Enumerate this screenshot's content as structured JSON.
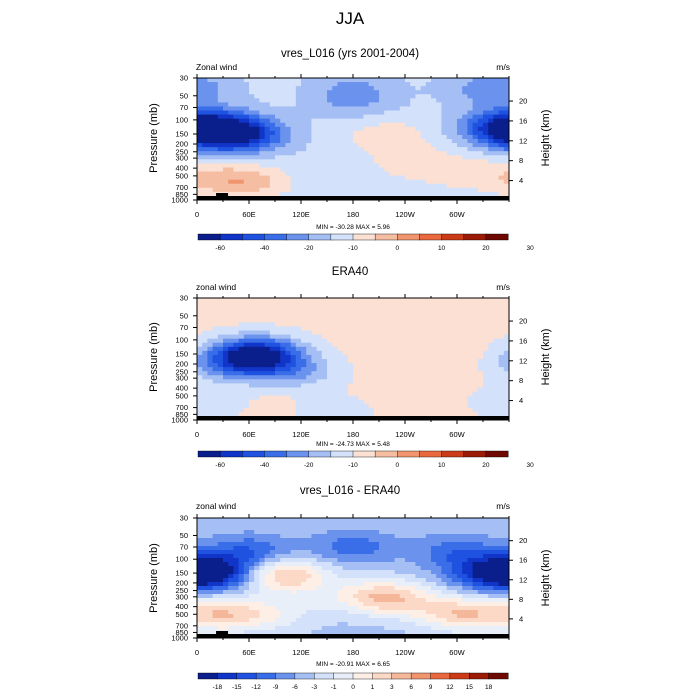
{
  "figure": {
    "title": "JJA"
  },
  "chart_data": [
    {
      "type": "heatmap",
      "title": "vres_L016 (yrs 2001-2004)",
      "left_label": "Zonal wind",
      "right_label": "m/s",
      "ylabel": "Pressure (mb)",
      "ylabel_right": "Height (km)",
      "x_ticks": [
        "0",
        "60E",
        "120E",
        "180",
        "120W",
        "60W"
      ],
      "x_tick_values": [
        0,
        60,
        120,
        180,
        240,
        300
      ],
      "xlim": [
        0,
        360
      ],
      "y_ticks": [
        "30",
        "50",
        "70",
        "100",
        "150",
        "200",
        "250",
        "300",
        "400",
        "500",
        "700",
        "850",
        "1000"
      ],
      "y_tick_values": [
        30,
        50,
        70,
        100,
        150,
        200,
        250,
        300,
        400,
        500,
        700,
        850,
        1000
      ],
      "ylim": [
        1000,
        30
      ],
      "height_ticks": [
        "4",
        "8",
        "12",
        "16",
        "20"
      ],
      "height_tick_values": [
        4,
        8,
        12,
        16,
        20
      ],
      "stats": "MIN = -30.28  MAX =  5.96",
      "min": -30.28,
      "max": 5.96,
      "colorbar_labels": [
        "-60",
        "-40",
        "-20",
        "-10",
        "0",
        "10",
        "20",
        "30"
      ],
      "colorbar_colors": [
        "#0a1e8c",
        "#1035c8",
        "#1f52e0",
        "#3a6ee8",
        "#6b93ee",
        "#a5bff5",
        "#d3e2fa",
        "#fbe0d3",
        "#f5bda2",
        "#f0956e",
        "#e9683e",
        "#cc3b17",
        "#9b1b05",
        "#6e0800"
      ],
      "fields": [
        {
          "lon": 0,
          "p": 110,
          "value": -14
        },
        {
          "lon": 30,
          "p": 140,
          "value": -26
        },
        {
          "lon": 60,
          "p": 160,
          "value": -14
        },
        {
          "lon": 0,
          "p": 40,
          "value": -8
        },
        {
          "lon": 180,
          "p": 40,
          "value": -8
        },
        {
          "lon": 330,
          "p": 40,
          "value": -8
        },
        {
          "lon": 180,
          "p": 60,
          "value": -8
        },
        {
          "lon": 350,
          "p": 140,
          "value": -13
        },
        {
          "lon": 220,
          "p": 160,
          "value": 3
        },
        {
          "lon": 60,
          "p": 600,
          "value": 5
        },
        {
          "lon": 20,
          "p": 550,
          "value": 3
        },
        {
          "lon": 250,
          "p": 350,
          "value": 2
        },
        {
          "lon": 310,
          "p": 450,
          "value": 2
        }
      ],
      "background_value": -3
    },
    {
      "type": "heatmap",
      "title": "ERA40",
      "left_label": "zonal wind",
      "right_label": "m/s",
      "ylabel": "Pressure (mb)",
      "ylabel_right": "Height (km)",
      "x_ticks": [
        "0",
        "60E",
        "120E",
        "180",
        "120W",
        "60W"
      ],
      "x_tick_values": [
        0,
        60,
        120,
        180,
        240,
        300
      ],
      "xlim": [
        0,
        360
      ],
      "y_ticks": [
        "30",
        "50",
        "70",
        "100",
        "150",
        "200",
        "250",
        "300",
        "400",
        "500",
        "700",
        "850",
        "1000"
      ],
      "y_tick_values": [
        30,
        50,
        70,
        100,
        150,
        200,
        250,
        300,
        400,
        500,
        700,
        850,
        1000
      ],
      "ylim": [
        1000,
        30
      ],
      "height_ticks": [
        "4",
        "8",
        "12",
        "16",
        "20"
      ],
      "height_tick_values": [
        4,
        8,
        12,
        16,
        20
      ],
      "stats": "MIN = -24.73  MAX =  5.48",
      "min": -24.73,
      "max": 5.48,
      "colorbar_labels": [
        "-60",
        "-40",
        "-20",
        "-10",
        "0",
        "10",
        "20",
        "30"
      ],
      "colorbar_colors": [
        "#0a1e8c",
        "#1035c8",
        "#1f52e0",
        "#3a6ee8",
        "#6b93ee",
        "#a5bff5",
        "#d3e2fa",
        "#fbe0d3",
        "#f5bda2",
        "#f0956e",
        "#e9683e",
        "#cc3b17",
        "#9b1b05",
        "#6e0800"
      ],
      "fields": [
        {
          "lon": 70,
          "p": 150,
          "value": -22
        },
        {
          "lon": 40,
          "p": 200,
          "value": -9
        },
        {
          "lon": 110,
          "p": 250,
          "value": -7
        },
        {
          "lon": 10,
          "p": 600,
          "value": -3
        },
        {
          "lon": 90,
          "p": 700,
          "value": 2
        },
        {
          "lon": 260,
          "p": 150,
          "value": 3
        },
        {
          "lon": 200,
          "p": 40,
          "value": 2
        },
        {
          "lon": 200,
          "p": 500,
          "value": 1
        },
        {
          "lon": 330,
          "p": 500,
          "value": 1
        },
        {
          "lon": 150,
          "p": 800,
          "value": -2
        }
      ],
      "background_value": 1
    },
    {
      "type": "heatmap",
      "title": "vres_L016 - ERA40",
      "left_label": "zonal wind",
      "right_label": "m/s",
      "ylabel": "Pressure (mb)",
      "ylabel_right": "Height (km)",
      "x_ticks": [
        "0",
        "60E",
        "120E",
        "180",
        "120W",
        "60W"
      ],
      "x_tick_values": [
        0,
        60,
        120,
        180,
        240,
        300
      ],
      "xlim": [
        0,
        360
      ],
      "y_ticks": [
        "30",
        "50",
        "70",
        "100",
        "150",
        "200",
        "250",
        "300",
        "400",
        "500",
        "700",
        "850",
        "1000"
      ],
      "y_tick_values": [
        30,
        50,
        70,
        100,
        150,
        200,
        250,
        300,
        400,
        500,
        700,
        850,
        1000
      ],
      "ylim": [
        1000,
        30
      ],
      "height_ticks": [
        "4",
        "8",
        "12",
        "16",
        "20"
      ],
      "height_tick_values": [
        4,
        8,
        12,
        16,
        20
      ],
      "stats": "MIN = -20.91  MAX =  6.65",
      "min": -20.91,
      "max": 6.65,
      "colorbar_labels": [
        "-18",
        "-15",
        "-12",
        "-9",
        "-6",
        "-3",
        "-1",
        "0",
        "1",
        "3",
        "6",
        "9",
        "12",
        "15",
        "18"
      ],
      "colorbar_colors": [
        "#0a1e8c",
        "#1035c8",
        "#1f52e0",
        "#3a6ee8",
        "#6b93ee",
        "#a5bff5",
        "#d3e2fa",
        "#e8eff9",
        "#fdeee6",
        "#fbd9c6",
        "#f5b79a",
        "#f0956e",
        "#e9683e",
        "#cc3b17",
        "#9b1b05",
        "#6e0800"
      ],
      "fields": [
        {
          "lon": 20,
          "p": 150,
          "value": -19
        },
        {
          "lon": 340,
          "p": 150,
          "value": -17
        },
        {
          "lon": 180,
          "p": 70,
          "value": -12
        },
        {
          "lon": 60,
          "p": 80,
          "value": -13
        },
        {
          "lon": 300,
          "p": 80,
          "value": -12
        },
        {
          "lon": 100,
          "p": 160,
          "value": 6
        },
        {
          "lon": 215,
          "p": 300,
          "value": 5
        },
        {
          "lon": 30,
          "p": 500,
          "value": 4
        },
        {
          "lon": 310,
          "p": 500,
          "value": 4
        },
        {
          "lon": 150,
          "p": 300,
          "value": -4
        },
        {
          "lon": 260,
          "p": 400,
          "value": -3
        },
        {
          "lon": 90,
          "p": 500,
          "value": -2
        }
      ],
      "background_value": -6
    }
  ]
}
